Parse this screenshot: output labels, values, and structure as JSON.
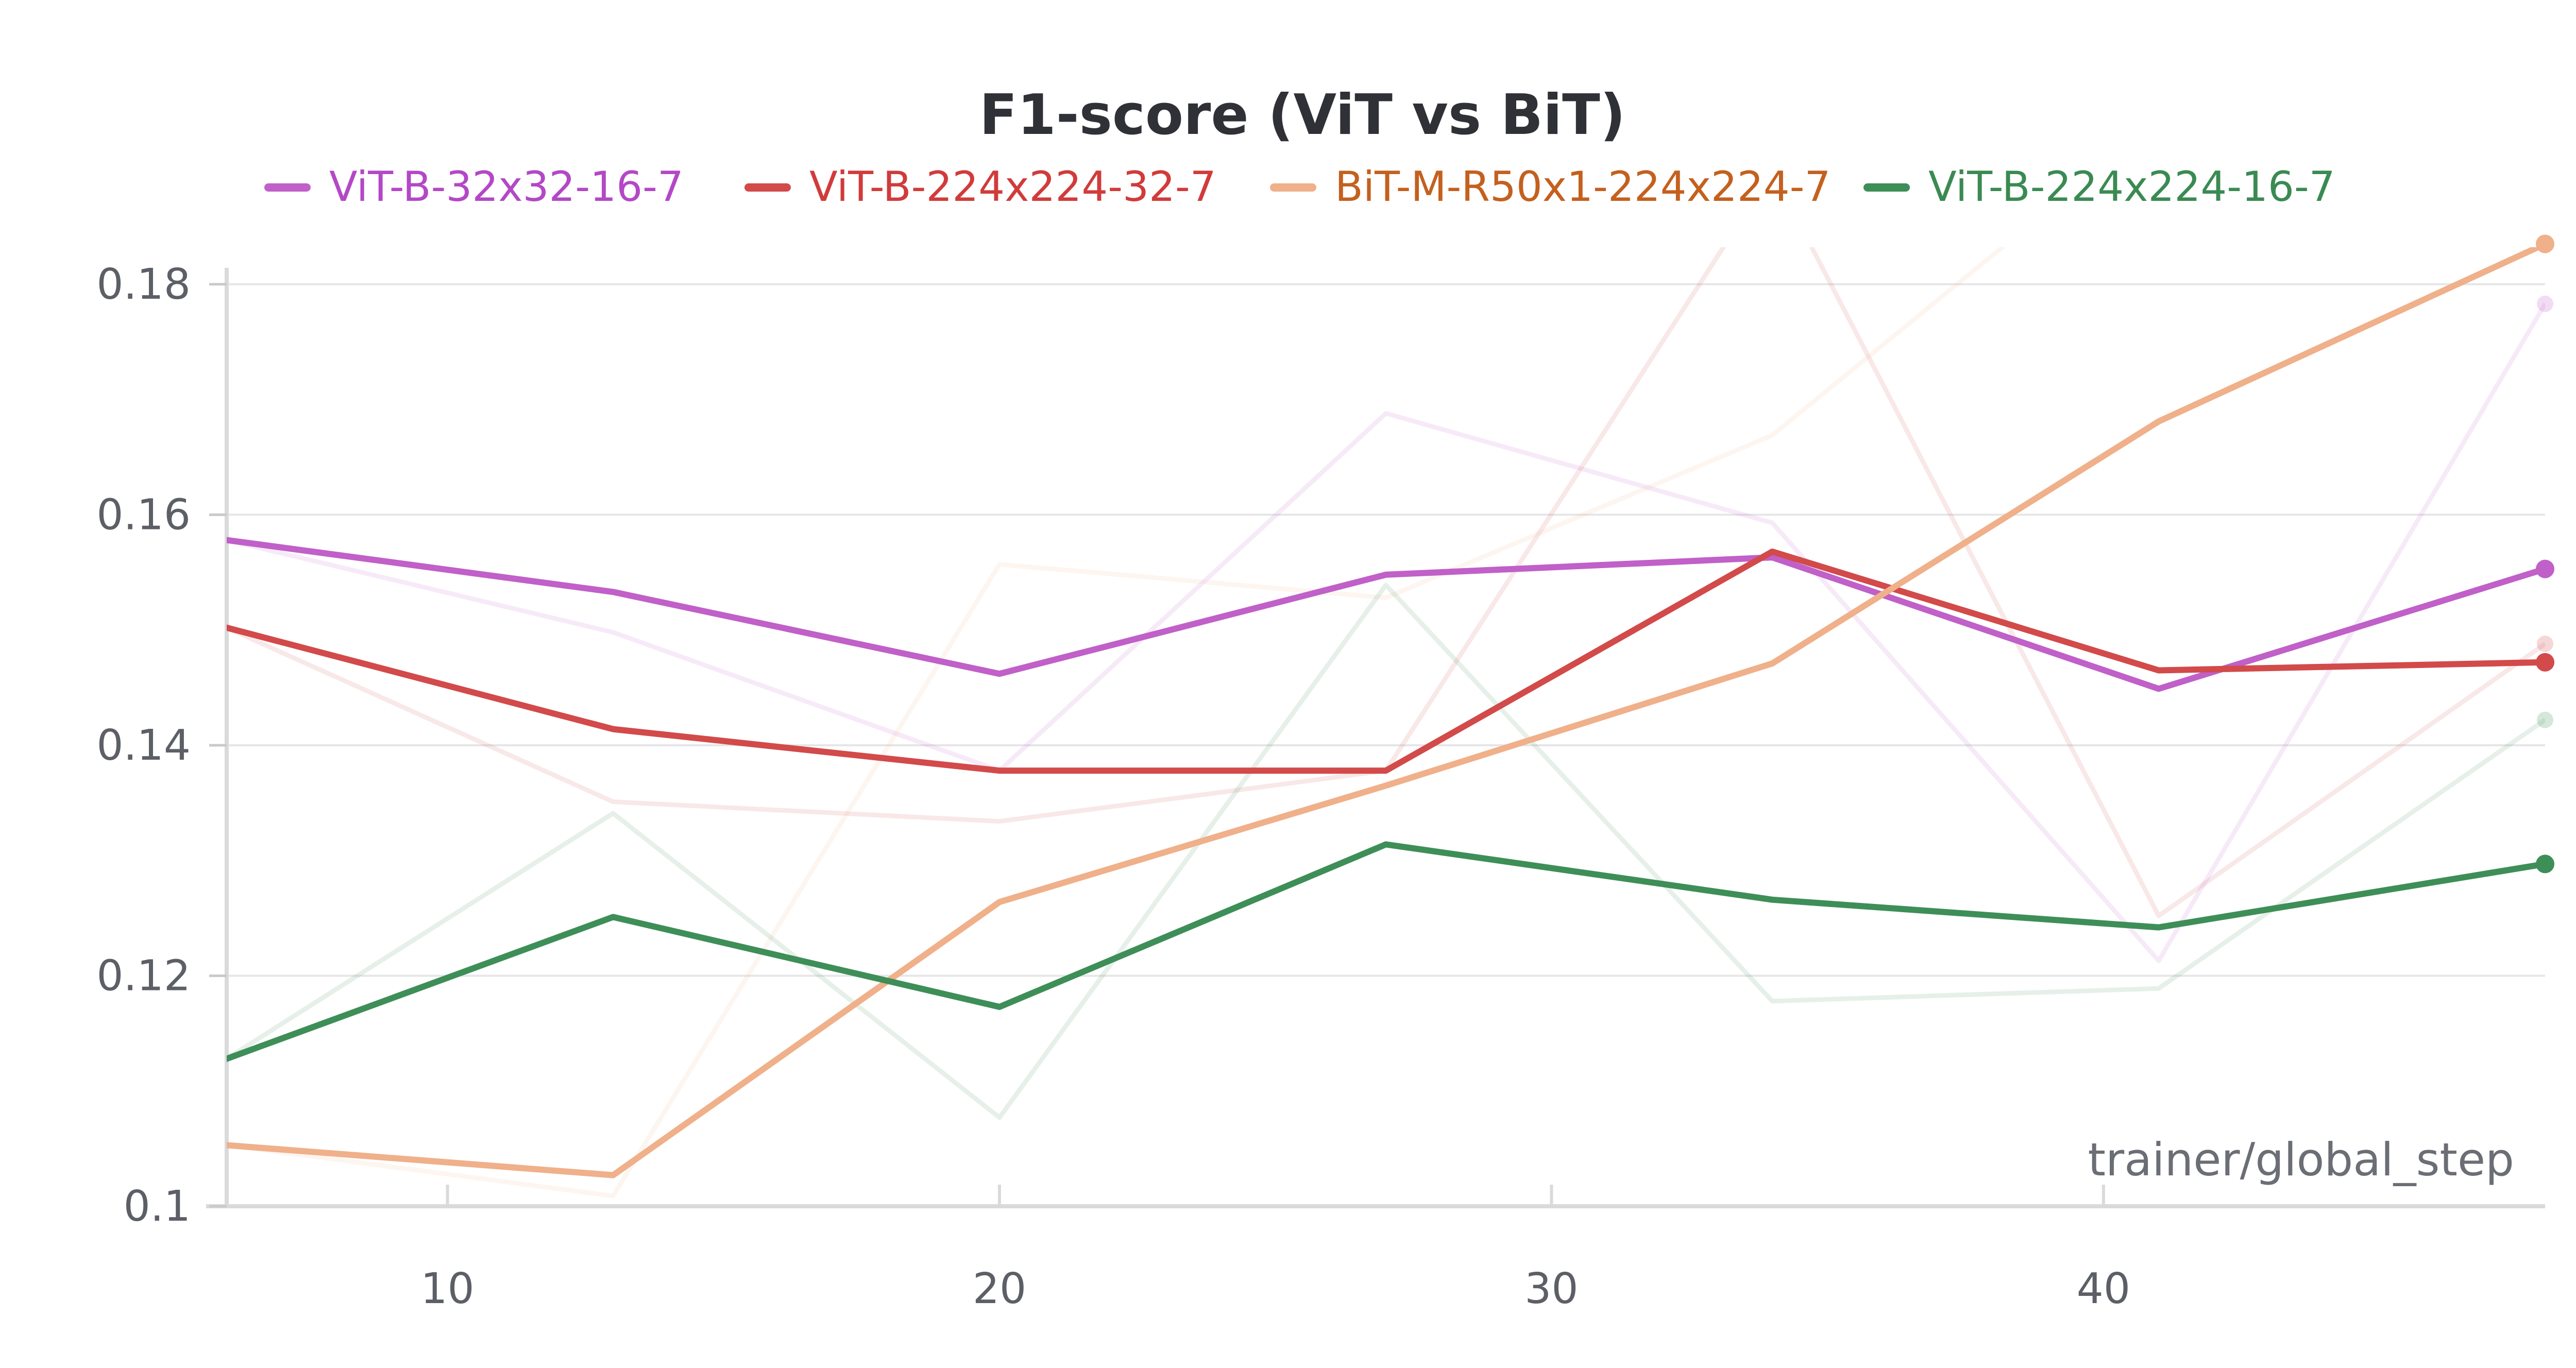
{
  "chart_data": {
    "type": "line",
    "title": "F1-score (ViT vs BiT)",
    "xlabel": "trainer/global_step",
    "ylabel": "",
    "xlim": [
      6,
      48
    ],
    "ylim": [
      0.1,
      0.185
    ],
    "x_ticks": [
      10,
      20,
      30,
      40
    ],
    "y_ticks": [
      0.1,
      0.12,
      0.14,
      0.16,
      0.18
    ],
    "y_tick_labels": [
      "0.1",
      "0.12",
      "0.14",
      "0.16",
      "0.18"
    ],
    "grid": true,
    "legend_position": "top",
    "series": [
      {
        "name": "ViT-B-32x32-16-7",
        "color": "#c060c8",
        "legend_text_color": "#b348c6",
        "x": [
          6,
          13,
          20,
          27,
          34,
          41,
          48
        ],
        "values": [
          0.1578,
          0.1533,
          0.1462,
          0.1548,
          0.1563,
          0.1449,
          0.1553
        ],
        "raw_values": [
          0.1578,
          0.1498,
          0.1378,
          0.1688,
          0.1593,
          0.1213,
          0.1783
        ]
      },
      {
        "name": "ViT-B-224x224-32-7",
        "color": "#d24a4a",
        "legend_text_color": "#d13b3b",
        "x": [
          6,
          13,
          20,
          27,
          34,
          41,
          48
        ],
        "values": [
          0.1502,
          0.1414,
          0.1378,
          0.1378,
          0.1568,
          0.1465,
          0.1472
        ],
        "raw_values": [
          0.1502,
          0.1351,
          0.1334,
          0.1378,
          0.1898,
          0.1252,
          0.1488
        ]
      },
      {
        "name": "BiT-M-R50x1-224x224-7",
        "color": "#efb08a",
        "legend_text_color": "#c4601e",
        "x": [
          6,
          13,
          20,
          27,
          34,
          41,
          48
        ],
        "values": [
          0.1053,
          0.1027,
          0.1264,
          0.1365,
          0.1471,
          0.1681,
          0.1835
        ],
        "raw_values": [
          0.1053,
          0.1009,
          0.1557,
          0.1528,
          0.1669,
          0.1943,
          0.1835
        ]
      },
      {
        "name": "ViT-B-224x224-16-7",
        "color": "#3e8e58",
        "legend_text_color": "#3a8a52",
        "x": [
          6,
          13,
          20,
          27,
          34,
          41,
          48
        ],
        "values": [
          0.1128,
          0.1251,
          0.1173,
          0.1314,
          0.1266,
          0.1242,
          0.1297
        ],
        "raw_values": [
          0.1128,
          0.1341,
          0.1077,
          0.1539,
          0.1178,
          0.1189,
          0.1422
        ]
      }
    ]
  }
}
